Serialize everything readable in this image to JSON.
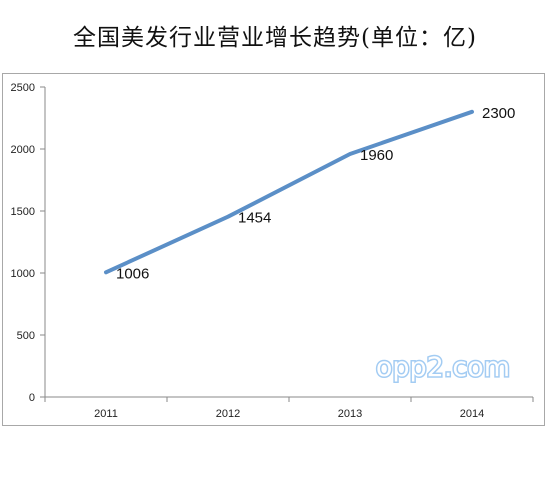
{
  "chart_data": {
    "type": "line",
    "title": "全国美发行业营业增长趋势(单位：亿)",
    "categories": [
      "2011",
      "2012",
      "2013",
      "2014"
    ],
    "series": [
      {
        "values": [
          1006,
          1454,
          1960,
          2300
        ]
      }
    ],
    "data_labels": [
      "1006",
      "1454",
      "1960",
      "2300"
    ],
    "yticks": [
      0,
      500,
      1000,
      1500,
      2000,
      2500
    ],
    "ylim": [
      0,
      2500
    ],
    "grid": false,
    "line_color": "#5b8fc7",
    "show_legend": false
  },
  "watermark": {
    "text": "opp2.com"
  }
}
